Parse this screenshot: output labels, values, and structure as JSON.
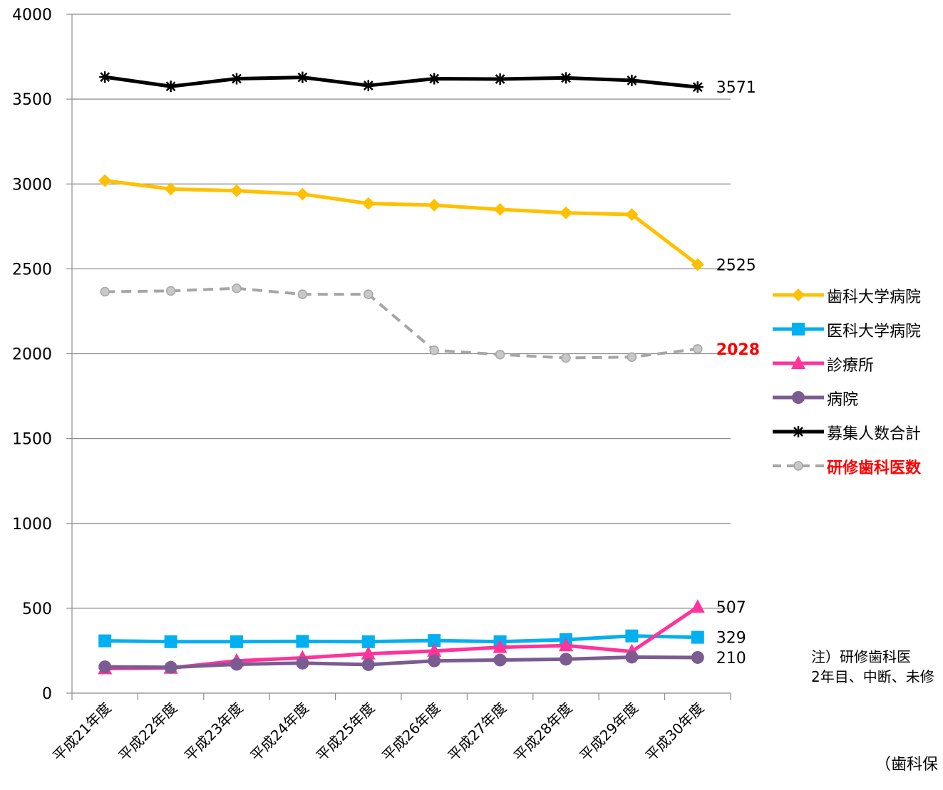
{
  "chart_data": {
    "type": "line",
    "categories": [
      "平成21年度",
      "平成22年度",
      "平成23年度",
      "平成24年度",
      "平成25年度",
      "平成26年度",
      "平成27年度",
      "平成28年度",
      "平成29年度",
      "平成30年度"
    ],
    "ylim": [
      0,
      4000
    ],
    "yticks": [
      0,
      500,
      1000,
      1500,
      2000,
      2500,
      3000,
      3500,
      4000
    ],
    "grid": true,
    "legend_position": "right",
    "series": [
      {
        "name": "歯科大学病院",
        "color": "#ffc000",
        "marker": "diamond",
        "dashed": false,
        "values": [
          3020,
          2970,
          2960,
          2940,
          2885,
          2875,
          2850,
          2830,
          2820,
          2525
        ],
        "end_label": "2525",
        "end_label_color": "#000000",
        "end_label_bold": false
      },
      {
        "name": "医科大学病院",
        "color": "#00b0f0",
        "marker": "square",
        "dashed": false,
        "values": [
          308,
          303,
          303,
          305,
          303,
          310,
          303,
          315,
          337,
          329
        ],
        "end_label": "329",
        "end_label_color": "#000000",
        "end_label_bold": false
      },
      {
        "name": "診療所",
        "color": "#ff3399",
        "marker": "triangle",
        "dashed": false,
        "values": [
          145,
          148,
          190,
          208,
          232,
          248,
          270,
          280,
          245,
          507
        ],
        "end_label": "507",
        "end_label_color": "#000000",
        "end_label_bold": false
      },
      {
        "name": "病院",
        "color": "#7b5c91",
        "marker": "circle",
        "dashed": false,
        "values": [
          155,
          152,
          170,
          177,
          168,
          190,
          195,
          200,
          212,
          210
        ],
        "end_label": "210",
        "end_label_color": "#000000",
        "end_label_bold": false
      },
      {
        "name": "募集人数合計",
        "color": "#000000",
        "marker": "star",
        "dashed": false,
        "values": [
          3630,
          3575,
          3620,
          3628,
          3580,
          3620,
          3618,
          3625,
          3610,
          3571
        ],
        "end_label": "3571",
        "end_label_color": "#000000",
        "end_label_bold": false
      },
      {
        "name": "研修歯科医数",
        "color": "#a6a6a6",
        "marker": "circle",
        "dashed": true,
        "values": [
          2365,
          2370,
          2385,
          2350,
          2350,
          2020,
          1995,
          1975,
          1980,
          2028
        ],
        "end_label": "2028",
        "end_label_color": "#ff0000",
        "end_label_bold": true
      }
    ]
  },
  "note": {
    "line1": "注）研修歯科医",
    "line2": "2年目、中断、未修"
  },
  "source_text": "（歯科保"
}
